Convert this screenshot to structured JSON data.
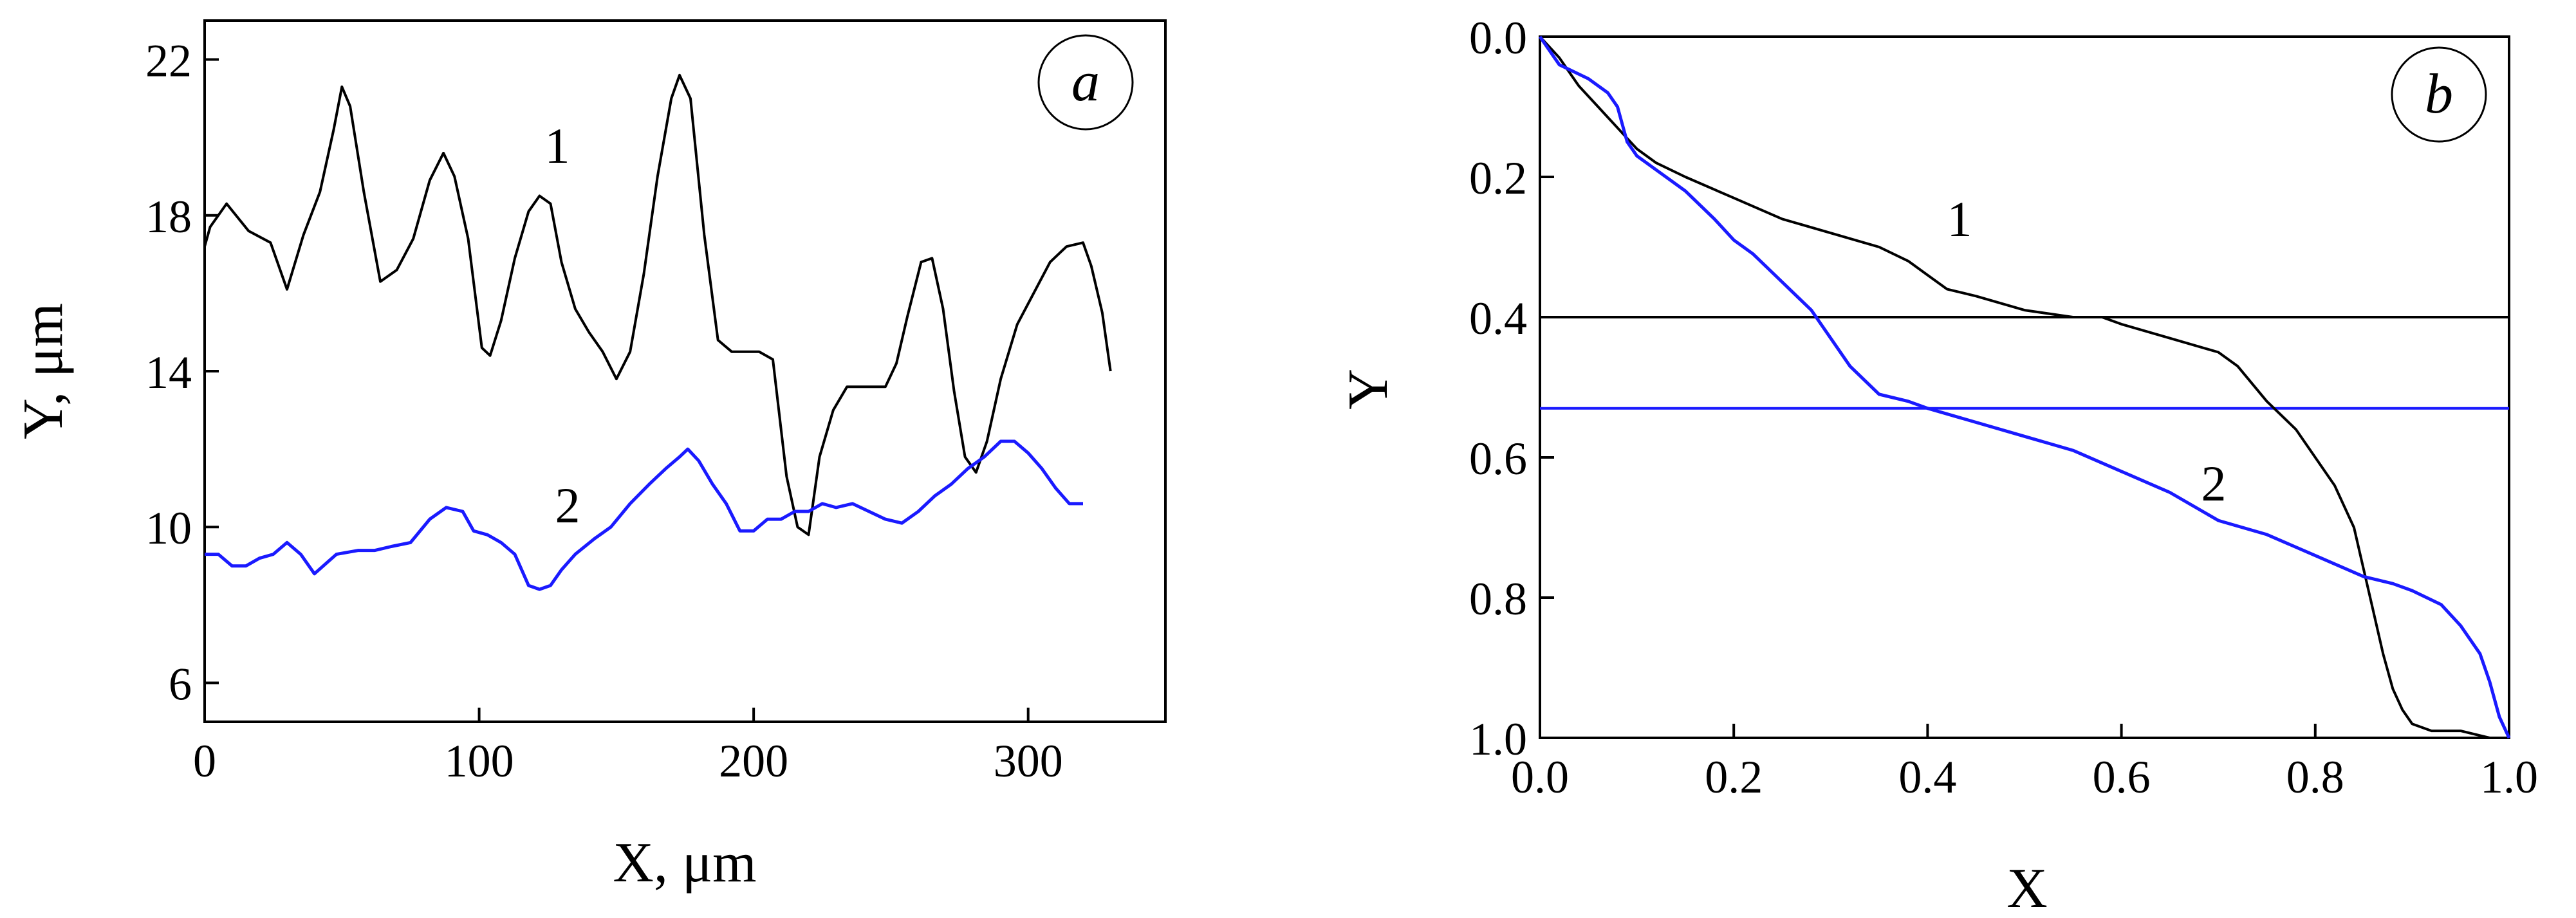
{
  "chart_data": [
    {
      "panel": "a",
      "type": "line",
      "xlabel": "X, μm",
      "ylabel": "Y, μm",
      "xlim": [
        0,
        350
      ],
      "ylim": [
        5,
        23
      ],
      "xticks": [
        "0",
        "100",
        "200",
        "300"
      ],
      "yticks": [
        "6",
        "10",
        "14",
        "18",
        "22"
      ],
      "grid": false,
      "series": [
        {
          "name": "1",
          "color": "#000000",
          "x": [
            0,
            2,
            8,
            16,
            24,
            30,
            36,
            42,
            47,
            50,
            53,
            58,
            64,
            70,
            76,
            82,
            87,
            91,
            96,
            101,
            104,
            108,
            113,
            118,
            122,
            126,
            130,
            135,
            140,
            145,
            150,
            155,
            160,
            165,
            170,
            173,
            177,
            182,
            187,
            192,
            197,
            202,
            207,
            212,
            216,
            220,
            224,
            229,
            234,
            240,
            248,
            252,
            256,
            261,
            265,
            269,
            273,
            277,
            281,
            285,
            290,
            296,
            302,
            308,
            314,
            320,
            323,
            327,
            330
          ],
          "y": [
            17.2,
            17.7,
            18.3,
            17.6,
            17.3,
            16.1,
            17.5,
            18.6,
            20.2,
            21.3,
            20.8,
            18.6,
            16.3,
            16.6,
            17.4,
            18.9,
            19.6,
            19.0,
            17.4,
            14.6,
            14.4,
            15.3,
            16.9,
            18.1,
            18.5,
            18.3,
            16.8,
            15.6,
            15.0,
            14.5,
            13.8,
            14.5,
            16.5,
            19.0,
            21.0,
            21.6,
            21.0,
            17.5,
            14.8,
            14.5,
            14.5,
            14.5,
            14.3,
            11.3,
            10.0,
            9.8,
            11.8,
            13.0,
            13.6,
            13.6,
            13.6,
            14.2,
            15.4,
            16.8,
            16.9,
            15.6,
            13.5,
            11.8,
            11.4,
            12.2,
            13.8,
            15.2,
            16.0,
            16.8,
            17.2,
            17.3,
            16.7,
            15.5,
            14.0
          ]
        },
        {
          "name": "2",
          "color": "#1a1aff",
          "x": [
            0,
            5,
            10,
            15,
            20,
            25,
            30,
            35,
            40,
            48,
            56,
            62,
            68,
            75,
            82,
            88,
            94,
            98,
            103,
            108,
            113,
            118,
            122,
            126,
            130,
            135,
            142,
            148,
            155,
            162,
            168,
            173,
            176,
            180,
            185,
            190,
            195,
            200,
            205,
            210,
            215,
            220,
            225,
            230,
            236,
            242,
            248,
            254,
            260,
            266,
            272,
            278,
            284,
            290,
            295,
            300,
            305,
            310,
            315,
            320
          ],
          "y": [
            9.3,
            9.3,
            9.0,
            9.0,
            9.2,
            9.3,
            9.6,
            9.3,
            8.8,
            9.3,
            9.4,
            9.4,
            9.5,
            9.6,
            10.2,
            10.5,
            10.4,
            9.9,
            9.8,
            9.6,
            9.3,
            8.5,
            8.4,
            8.5,
            8.9,
            9.3,
            9.7,
            10.0,
            10.6,
            11.1,
            11.5,
            11.8,
            12.0,
            11.7,
            11.1,
            10.6,
            9.9,
            9.9,
            10.2,
            10.2,
            10.4,
            10.4,
            10.6,
            10.5,
            10.6,
            10.4,
            10.2,
            10.1,
            10.4,
            10.8,
            11.1,
            11.5,
            11.8,
            12.2,
            12.2,
            11.9,
            11.5,
            11.0,
            10.6,
            10.6
          ]
        }
      ]
    },
    {
      "panel": "b",
      "type": "line",
      "xlabel": "X",
      "ylabel": "Y",
      "xlim": [
        0,
        1
      ],
      "ylim": [
        1.0,
        0.0
      ],
      "xticks": [
        "0.0",
        "0.2",
        "0.4",
        "0.6",
        "0.8",
        "1.0"
      ],
      "yticks": [
        "0.0",
        "0.2",
        "0.4",
        "0.6",
        "0.8",
        "1.0"
      ],
      "grid": false,
      "hlines": [
        {
          "y": 0.4,
          "color": "#000000"
        },
        {
          "y": 0.53,
          "color": "#1a1aff"
        }
      ],
      "series": [
        {
          "name": "1",
          "color": "#000000",
          "x": [
            0,
            0.02,
            0.04,
            0.06,
            0.08,
            0.1,
            0.12,
            0.15,
            0.2,
            0.25,
            0.3,
            0.35,
            0.38,
            0.4,
            0.42,
            0.45,
            0.5,
            0.55,
            0.58,
            0.6,
            0.65,
            0.7,
            0.72,
            0.75,
            0.78,
            0.8,
            0.82,
            0.84,
            0.85,
            0.86,
            0.87,
            0.88,
            0.89,
            0.9,
            0.92,
            0.95,
            0.98,
            1.0
          ],
          "y": [
            0,
            0.03,
            0.07,
            0.1,
            0.13,
            0.16,
            0.18,
            0.2,
            0.23,
            0.26,
            0.28,
            0.3,
            0.32,
            0.34,
            0.36,
            0.37,
            0.39,
            0.4,
            0.4,
            0.41,
            0.43,
            0.45,
            0.47,
            0.52,
            0.56,
            0.6,
            0.64,
            0.7,
            0.76,
            0.82,
            0.88,
            0.93,
            0.96,
            0.98,
            0.99,
            0.99,
            1.0,
            1.0
          ]
        },
        {
          "name": "2",
          "color": "#1a1aff",
          "x": [
            0,
            0.02,
            0.05,
            0.07,
            0.08,
            0.09,
            0.1,
            0.12,
            0.15,
            0.18,
            0.2,
            0.22,
            0.25,
            0.28,
            0.3,
            0.32,
            0.35,
            0.38,
            0.4,
            0.45,
            0.5,
            0.55,
            0.6,
            0.65,
            0.7,
            0.75,
            0.8,
            0.85,
            0.88,
            0.9,
            0.93,
            0.95,
            0.97,
            0.98,
            0.99,
            1.0
          ],
          "y": [
            0,
            0.04,
            0.06,
            0.08,
            0.1,
            0.15,
            0.17,
            0.19,
            0.22,
            0.26,
            0.29,
            0.31,
            0.35,
            0.39,
            0.43,
            0.47,
            0.51,
            0.52,
            0.53,
            0.55,
            0.57,
            0.59,
            0.62,
            0.65,
            0.69,
            0.71,
            0.74,
            0.77,
            0.78,
            0.79,
            0.81,
            0.84,
            0.88,
            0.92,
            0.97,
            1.0
          ]
        }
      ]
    }
  ],
  "labels": {
    "panel_a_badge": "a",
    "panel_b_badge": "b",
    "a_curve1": "1",
    "a_curve2": "2",
    "b_curve1": "1",
    "b_curve2": "2"
  }
}
